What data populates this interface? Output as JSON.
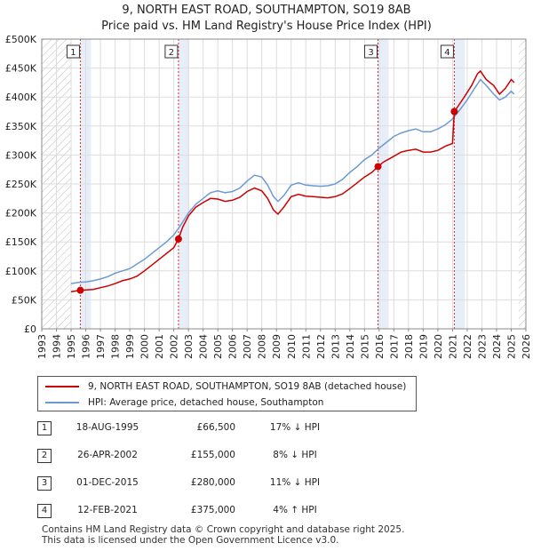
{
  "title_line1": "9, NORTH EAST ROAD, SOUTHAMPTON, SO19 8AB",
  "title_line2": "Price paid vs. HM Land Registry's House Price Index (HPI)",
  "colors": {
    "property": "#cc0000",
    "hpi": "#6c9bd2",
    "grid": "#dddddd",
    "shade": "#e8eef8",
    "hatch": "#bbbbbb",
    "marker_line": "#d03030"
  },
  "chart_data": {
    "type": "line",
    "title": "9, NORTH EAST ROAD, SOUTHAMPTON, SO19 8AB — Price paid vs. HM Land Registry's House Price Index (HPI)",
    "xlim": [
      1993,
      2026
    ],
    "ylim": [
      0,
      500000
    ],
    "x_ticks": [
      "1993",
      "1994",
      "1995",
      "1996",
      "1997",
      "1998",
      "1999",
      "2000",
      "2001",
      "2002",
      "2003",
      "2004",
      "2005",
      "2006",
      "2007",
      "2008",
      "2009",
      "2010",
      "2011",
      "2012",
      "2013",
      "2014",
      "2015",
      "2016",
      "2017",
      "2018",
      "2019",
      "2020",
      "2021",
      "2022",
      "2023",
      "2024",
      "2025",
      "2026"
    ],
    "y_ticks": [
      {
        "value": 0,
        "label": "£0"
      },
      {
        "value": 50000,
        "label": "£50K"
      },
      {
        "value": 100000,
        "label": "£100K"
      },
      {
        "value": 150000,
        "label": "£150K"
      },
      {
        "value": 200000,
        "label": "£200K"
      },
      {
        "value": 250000,
        "label": "£250K"
      },
      {
        "value": 300000,
        "label": "£300K"
      },
      {
        "value": 350000,
        "label": "£350K"
      },
      {
        "value": 400000,
        "label": "£400K"
      },
      {
        "value": 450000,
        "label": "£450K"
      },
      {
        "value": 500000,
        "label": "£500K"
      }
    ],
    "data_start": 1995.0,
    "data_end": 2025.5,
    "series": [
      {
        "name": "9, NORTH EAST ROAD, SOUTHAMPTON, SO19 8AB (detached house)",
        "color": "#cc0000",
        "points": [
          [
            1995.0,
            64000
          ],
          [
            1995.63,
            66500
          ],
          [
            1996.0,
            67000
          ],
          [
            1996.5,
            68000
          ],
          [
            1997.0,
            71000
          ],
          [
            1997.5,
            74000
          ],
          [
            1998.0,
            78000
          ],
          [
            1998.5,
            83000
          ],
          [
            1999.0,
            86000
          ],
          [
            1999.5,
            91000
          ],
          [
            2000.0,
            100000
          ],
          [
            2000.5,
            110000
          ],
          [
            2001.0,
            120000
          ],
          [
            2001.5,
            130000
          ],
          [
            2002.0,
            140000
          ],
          [
            2002.32,
            155000
          ],
          [
            2002.6,
            175000
          ],
          [
            2003.0,
            195000
          ],
          [
            2003.5,
            210000
          ],
          [
            2004.0,
            218000
          ],
          [
            2004.5,
            225000
          ],
          [
            2005.0,
            224000
          ],
          [
            2005.5,
            220000
          ],
          [
            2006.0,
            222000
          ],
          [
            2006.5,
            227000
          ],
          [
            2007.0,
            237000
          ],
          [
            2007.5,
            243000
          ],
          [
            2008.0,
            238000
          ],
          [
            2008.4,
            225000
          ],
          [
            2008.8,
            205000
          ],
          [
            2009.1,
            198000
          ],
          [
            2009.5,
            210000
          ],
          [
            2010.0,
            228000
          ],
          [
            2010.5,
            232000
          ],
          [
            2011.0,
            229000
          ],
          [
            2011.5,
            228000
          ],
          [
            2012.0,
            227000
          ],
          [
            2012.5,
            226000
          ],
          [
            2013.0,
            228000
          ],
          [
            2013.5,
            233000
          ],
          [
            2014.0,
            242000
          ],
          [
            2014.5,
            252000
          ],
          [
            2015.0,
            262000
          ],
          [
            2015.5,
            270000
          ],
          [
            2015.92,
            280000
          ],
          [
            2016.3,
            288000
          ],
          [
            2016.8,
            295000
          ],
          [
            2017.5,
            305000
          ],
          [
            2018.0,
            308000
          ],
          [
            2018.5,
            310000
          ],
          [
            2019.0,
            305000
          ],
          [
            2019.5,
            305000
          ],
          [
            2020.0,
            308000
          ],
          [
            2020.5,
            315000
          ],
          [
            2021.0,
            320000
          ],
          [
            2021.12,
            375000
          ],
          [
            2021.4,
            385000
          ],
          [
            2021.8,
            400000
          ],
          [
            2022.3,
            420000
          ],
          [
            2022.7,
            440000
          ],
          [
            2022.9,
            445000
          ],
          [
            2023.3,
            430000
          ],
          [
            2023.8,
            420000
          ],
          [
            2024.2,
            405000
          ],
          [
            2024.6,
            415000
          ],
          [
            2025.0,
            430000
          ],
          [
            2025.2,
            425000
          ]
        ]
      },
      {
        "name": "HPI: Average price, detached house, Southampton",
        "color": "#6c9bd2",
        "points": [
          [
            1995.0,
            78000
          ],
          [
            1995.5,
            80000
          ],
          [
            1996.0,
            81000
          ],
          [
            1996.5,
            83000
          ],
          [
            1997.0,
            86000
          ],
          [
            1997.5,
            90000
          ],
          [
            1998.0,
            96000
          ],
          [
            1998.5,
            100000
          ],
          [
            1999.0,
            104000
          ],
          [
            1999.5,
            112000
          ],
          [
            2000.0,
            120000
          ],
          [
            2000.5,
            130000
          ],
          [
            2001.0,
            140000
          ],
          [
            2001.5,
            150000
          ],
          [
            2002.0,
            162000
          ],
          [
            2002.5,
            180000
          ],
          [
            2003.0,
            200000
          ],
          [
            2003.5,
            215000
          ],
          [
            2004.0,
            225000
          ],
          [
            2004.5,
            235000
          ],
          [
            2005.0,
            238000
          ],
          [
            2005.5,
            235000
          ],
          [
            2006.0,
            237000
          ],
          [
            2006.5,
            243000
          ],
          [
            2007.0,
            255000
          ],
          [
            2007.5,
            265000
          ],
          [
            2008.0,
            262000
          ],
          [
            2008.4,
            248000
          ],
          [
            2008.8,
            228000
          ],
          [
            2009.1,
            220000
          ],
          [
            2009.5,
            230000
          ],
          [
            2010.0,
            248000
          ],
          [
            2010.5,
            252000
          ],
          [
            2011.0,
            248000
          ],
          [
            2011.5,
            247000
          ],
          [
            2012.0,
            246000
          ],
          [
            2012.5,
            247000
          ],
          [
            2013.0,
            250000
          ],
          [
            2013.5,
            258000
          ],
          [
            2014.0,
            270000
          ],
          [
            2014.5,
            280000
          ],
          [
            2015.0,
            292000
          ],
          [
            2015.5,
            300000
          ],
          [
            2016.0,
            312000
          ],
          [
            2016.5,
            322000
          ],
          [
            2017.0,
            332000
          ],
          [
            2017.5,
            338000
          ],
          [
            2018.0,
            342000
          ],
          [
            2018.5,
            345000
          ],
          [
            2019.0,
            340000
          ],
          [
            2019.5,
            340000
          ],
          [
            2020.0,
            345000
          ],
          [
            2020.5,
            352000
          ],
          [
            2021.0,
            362000
          ],
          [
            2021.5,
            378000
          ],
          [
            2022.0,
            395000
          ],
          [
            2022.5,
            415000
          ],
          [
            2022.9,
            430000
          ],
          [
            2023.3,
            420000
          ],
          [
            2023.8,
            405000
          ],
          [
            2024.2,
            395000
          ],
          [
            2024.6,
            400000
          ],
          [
            2025.0,
            410000
          ],
          [
            2025.2,
            405000
          ]
        ]
      }
    ],
    "sales": [
      {
        "num": "1",
        "x": 1995.63,
        "price": 66500
      },
      {
        "num": "2",
        "x": 2002.32,
        "price": 155000
      },
      {
        "num": "3",
        "x": 2015.92,
        "price": 280000
      },
      {
        "num": "4",
        "x": 2021.12,
        "price": 375000
      }
    ]
  },
  "legend": {
    "property_label": "9, NORTH EAST ROAD, SOUTHAMPTON, SO19 8AB (detached house)",
    "hpi_label": "HPI: Average price, detached house, Southampton"
  },
  "sales_table": [
    {
      "num": "1",
      "date": "18-AUG-1995",
      "price": "£66,500",
      "hpi": "17% ↓ HPI"
    },
    {
      "num": "2",
      "date": "26-APR-2002",
      "price": "£155,000",
      "hpi": "8% ↓ HPI"
    },
    {
      "num": "3",
      "date": "01-DEC-2015",
      "price": "£280,000",
      "hpi": "11% ↓ HPI"
    },
    {
      "num": "4",
      "date": "12-FEB-2021",
      "price": "£375,000",
      "hpi": "4% ↑ HPI"
    }
  ],
  "footer_line1": "Contains HM Land Registry data © Crown copyright and database right 2025.",
  "footer_line2": "This data is licensed under the Open Government Licence v3.0."
}
